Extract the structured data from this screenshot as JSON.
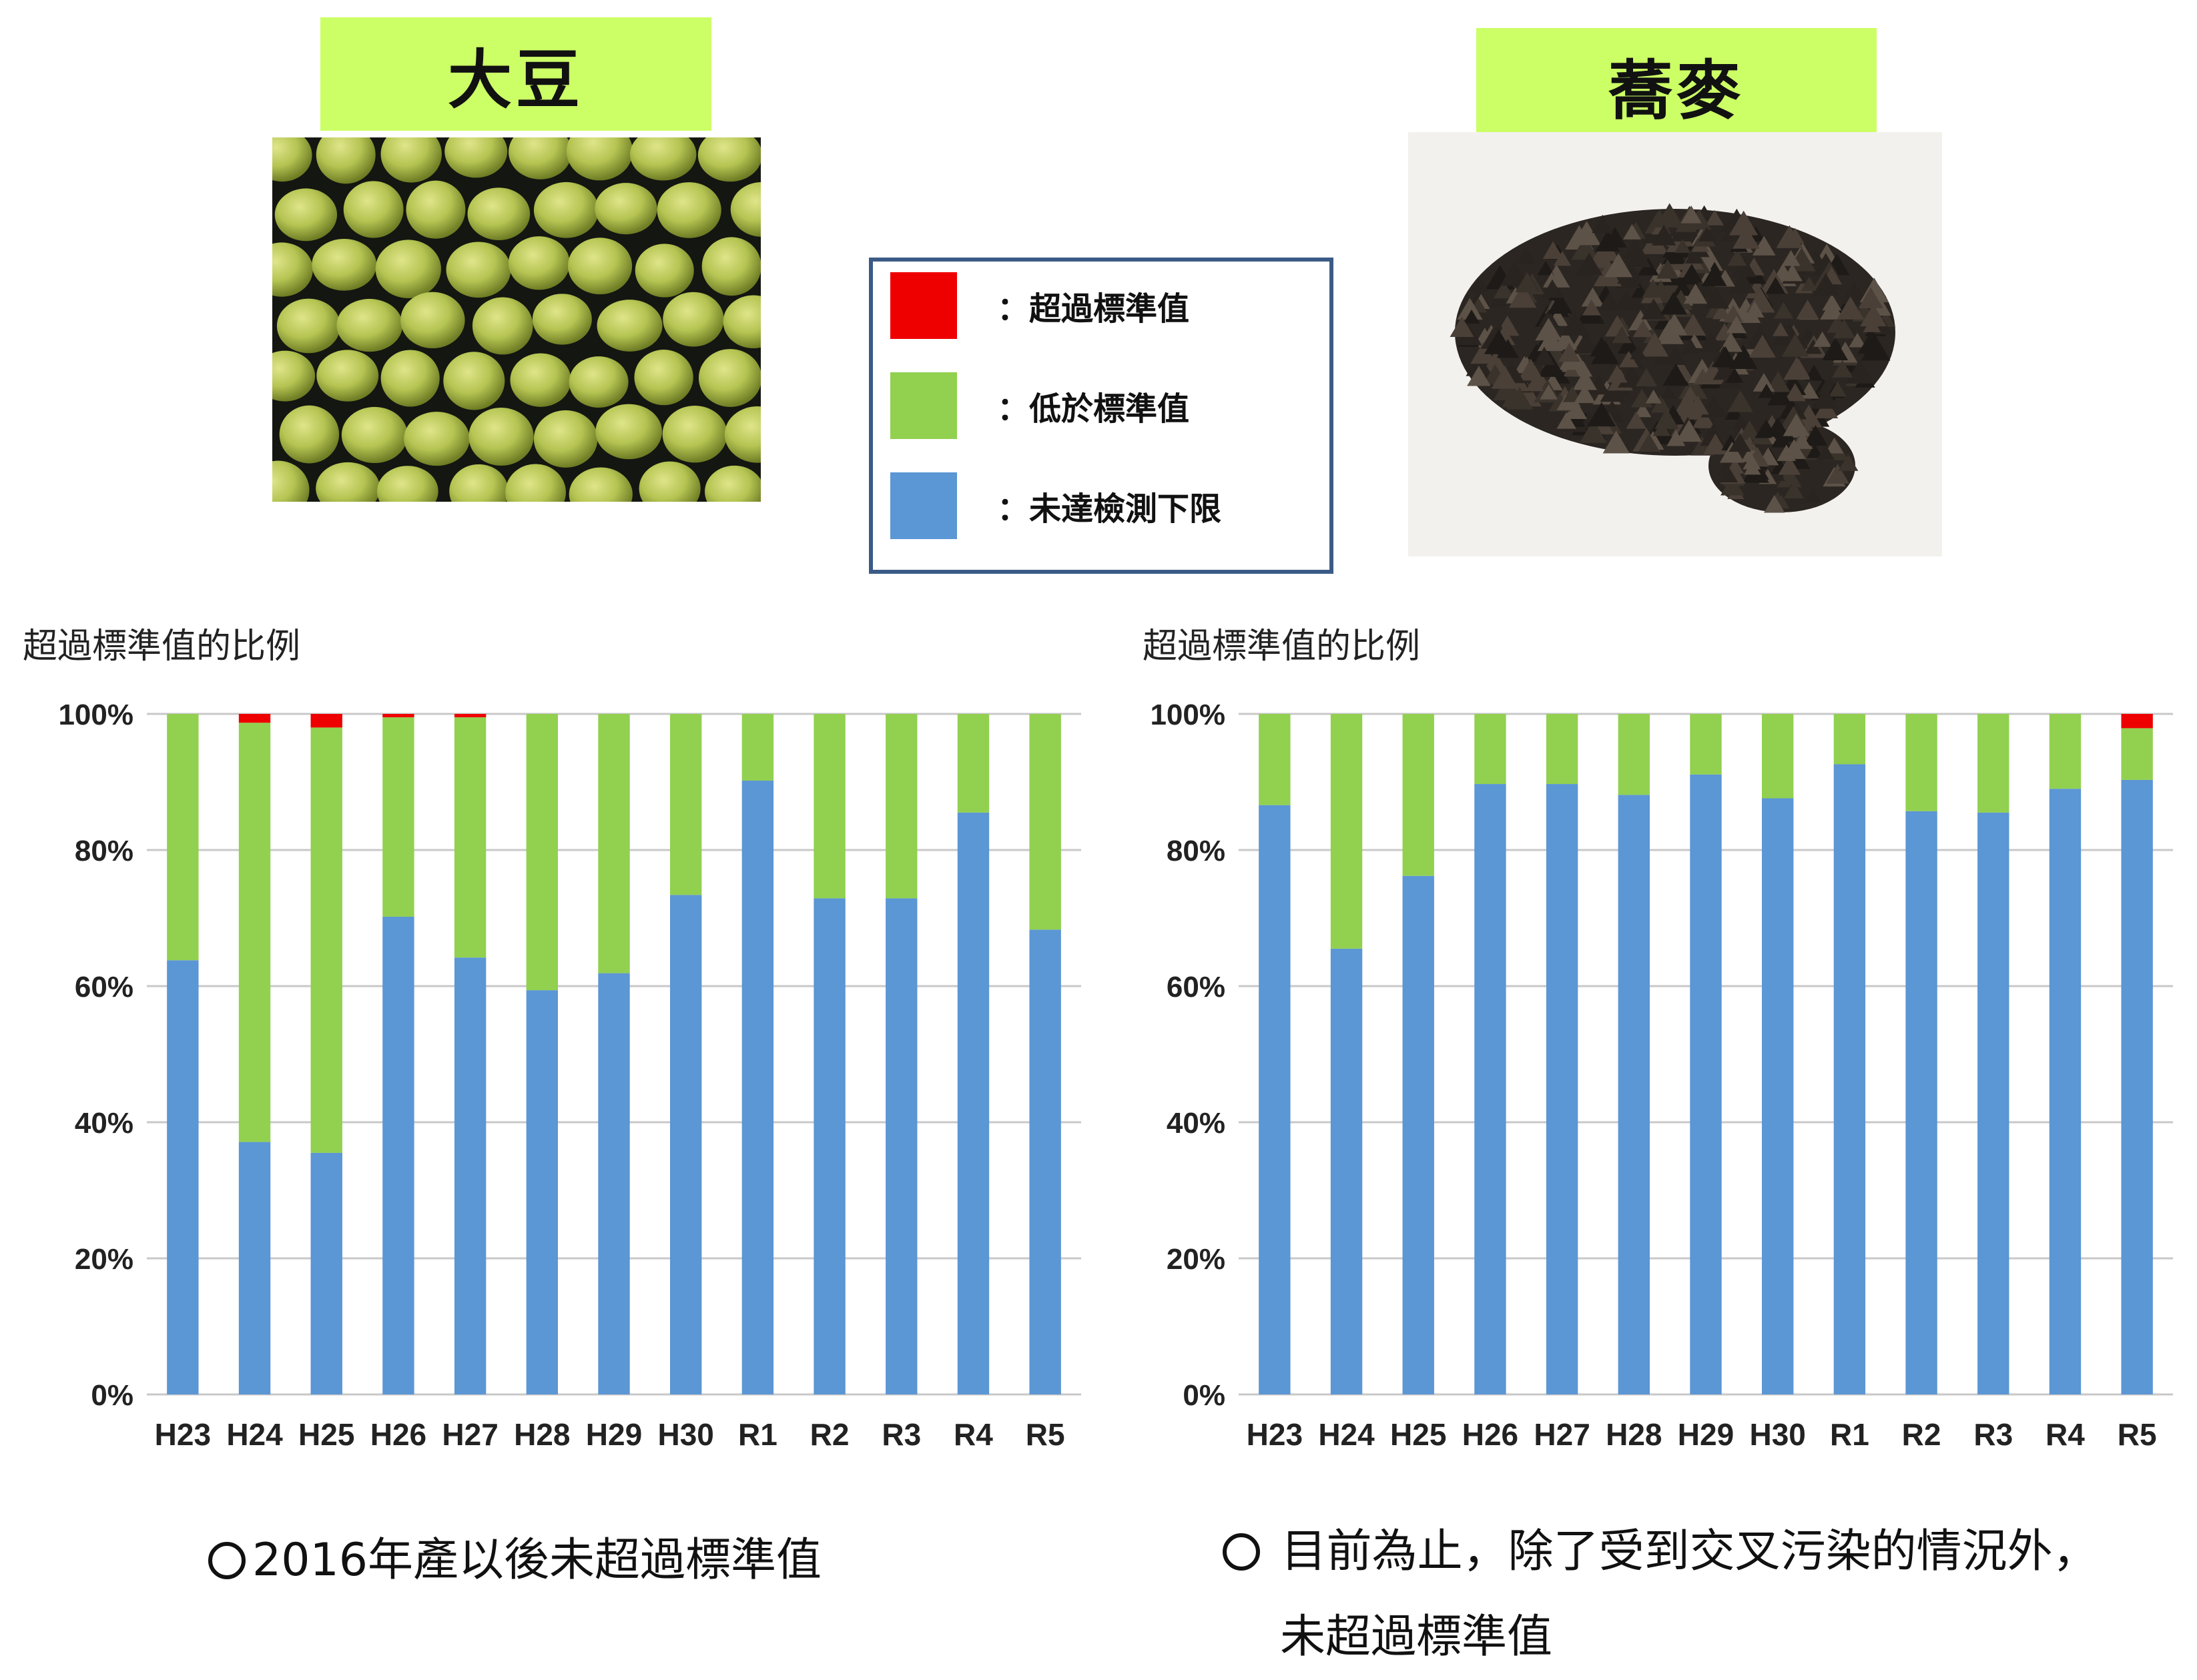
{
  "titles": {
    "soybean": "大豆",
    "buckwheat": "蕎麥"
  },
  "legend": [
    {
      "label": "：超過標準值",
      "color": "#ee0000"
    },
    {
      "label": "：低於標準值",
      "color": "#92d050"
    },
    {
      "label": "：未達檢測下限",
      "color": "#5b96d5"
    }
  ],
  "ratio_labels": {
    "soybean": "超過標準值的比例",
    "buckwheat": "超過標準值的比例"
  },
  "notes": {
    "soybean": "2016年產以後未超過標準值",
    "buckwheat_line1": "目前為止，除了受到交叉污染的情況外，",
    "buckwheat_line2": "未超過標準值"
  },
  "colors": {
    "exceed": "#ee0000",
    "below": "#92d050",
    "nd": "#5b96d5",
    "title_bg": "#ccff66",
    "legend_border": "#3b5b86"
  },
  "icons": {
    "soybean_photo": "soybean-photo",
    "buckwheat_photo": "buckwheat-photo"
  },
  "chart_data": [
    {
      "type": "bar",
      "stacked": true,
      "categories": [
        "H23",
        "H24",
        "H25",
        "H26",
        "H27",
        "H28",
        "H29",
        "H30",
        "R1",
        "R2",
        "R3",
        "R4",
        "R5"
      ],
      "series": [
        {
          "name": "未達檢測下限",
          "values": [
            63.8,
            37.1,
            35.5,
            70.2,
            64.2,
            59.4,
            61.9,
            73.4,
            90.2,
            72.9,
            72.9,
            85.5,
            68.3
          ]
        },
        {
          "name": "低於標準值",
          "values": [
            36.2,
            61.6,
            62.5,
            29.3,
            35.3,
            40.6,
            38.1,
            26.6,
            9.8,
            27.1,
            27.1,
            14.5,
            31.7
          ]
        },
        {
          "name": "超過標準值",
          "values": [
            0,
            1.3,
            2.0,
            0.5,
            0.5,
            0,
            0,
            0,
            0,
            0,
            0,
            0,
            0
          ]
        }
      ],
      "yticks": [
        "0%",
        "20%",
        "40%",
        "60%",
        "80%",
        "100%"
      ],
      "ylim": [
        0,
        100
      ],
      "grid": true
    },
    {
      "type": "bar",
      "stacked": true,
      "categories": [
        "H23",
        "H24",
        "H25",
        "H26",
        "H27",
        "H28",
        "H29",
        "H30",
        "R1",
        "R2",
        "R3",
        "R4",
        "R5"
      ],
      "series": [
        {
          "name": "未達檢測下限",
          "values": [
            86.6,
            65.5,
            76.2,
            89.7,
            89.7,
            88.1,
            91.1,
            87.6,
            92.6,
            85.7,
            85.5,
            89.0,
            90.3
          ]
        },
        {
          "name": "低於標準值",
          "values": [
            13.4,
            34.5,
            23.8,
            10.3,
            10.3,
            11.9,
            8.9,
            12.4,
            7.4,
            14.3,
            14.5,
            11.0,
            7.6
          ]
        },
        {
          "name": "超過標準值",
          "values": [
            0,
            0,
            0,
            0,
            0,
            0,
            0,
            0,
            0,
            0,
            0,
            0,
            2.1
          ]
        }
      ],
      "yticks": [
        "0%",
        "20%",
        "40%",
        "60%",
        "80%",
        "100%"
      ],
      "ylim": [
        0,
        100
      ],
      "grid": true
    }
  ]
}
